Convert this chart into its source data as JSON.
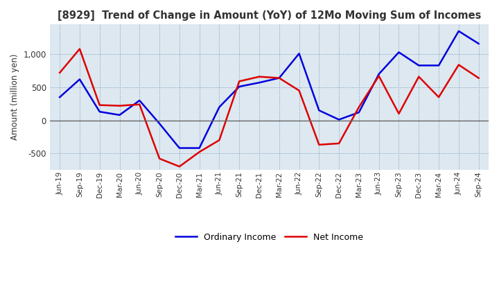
{
  "title": "[8929]  Trend of Change in Amount (YoY) of 12Mo Moving Sum of Incomes",
  "ylabel": "Amount (million yen)",
  "labels": [
    "Jun-19",
    "Sep-19",
    "Dec-19",
    "Mar-20",
    "Jun-20",
    "Sep-20",
    "Dec-20",
    "Mar-21",
    "Jun-21",
    "Sep-21",
    "Dec-21",
    "Mar-22",
    "Jun-22",
    "Sep-22",
    "Dec-22",
    "Mar-23",
    "Jun-23",
    "Sep-23",
    "Dec-23",
    "Mar-24",
    "Jun-24",
    "Sep-24"
  ],
  "ordinary_income": [
    350,
    620,
    130,
    80,
    300,
    -50,
    -420,
    -420,
    200,
    510,
    570,
    640,
    1010,
    150,
    10,
    120,
    700,
    1030,
    830,
    830,
    1350,
    1160
  ],
  "net_income": [
    720,
    1080,
    230,
    220,
    240,
    -580,
    -700,
    -480,
    -300,
    590,
    660,
    640,
    450,
    -370,
    -350,
    200,
    670,
    100,
    660,
    350,
    840,
    640
  ],
  "ordinary_color": "#0000dd",
  "net_color": "#dd0000",
  "ylim": [
    -750,
    1450
  ],
  "yticks": [
    -500,
    0,
    500,
    1000
  ],
  "plot_bg_color": "#dde8f0",
  "fig_bg_color": "#ffffff",
  "grid_color": "#7799bb",
  "zero_line_color": "#666666",
  "title_color": "#333333"
}
